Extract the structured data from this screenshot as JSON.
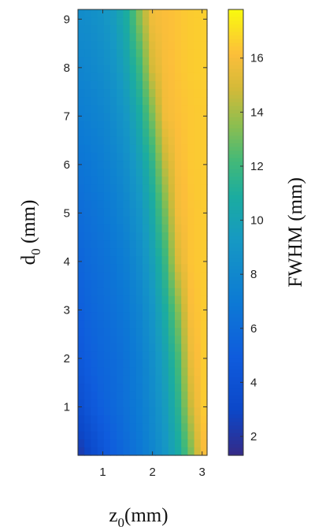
{
  "chart_data": {
    "type": "heatmap",
    "title": "",
    "xlabel_base": "z",
    "xlabel_sub": "0",
    "xlabel_unit": "(mm)",
    "ylabel_base": "d",
    "ylabel_sub": "0",
    "ylabel_unit": " (mm)",
    "colorbar_label": "FWHM (mm)",
    "xlim": [
      0.5,
      3.1
    ],
    "ylim": [
      0,
      9.2
    ],
    "xticks": [
      "1",
      "2",
      "3"
    ],
    "xtick_values": [
      1,
      2,
      3
    ],
    "yticks": [
      "1",
      "2",
      "3",
      "4",
      "5",
      "6",
      "7",
      "8",
      "9"
    ],
    "ytick_values": [
      1,
      2,
      3,
      4,
      5,
      6,
      7,
      8,
      9
    ],
    "colorbar_range": [
      1.3,
      17.8
    ],
    "colorbar_ticks": [
      "2",
      "4",
      "6",
      "8",
      "10",
      "12",
      "14",
      "16"
    ],
    "colorbar_tick_values": [
      2,
      4,
      6,
      8,
      10,
      12,
      14,
      16
    ],
    "colormap": "parula",
    "x_grid": [
      0.5,
      0.75,
      1.0,
      1.25,
      1.5,
      1.75,
      2.0,
      2.25,
      2.5,
      2.75,
      3.0
    ],
    "y_grid": [
      0,
      1,
      2,
      3,
      4,
      5,
      6,
      7,
      8,
      9
    ],
    "fwhm_values": [
      [
        2.0,
        3.0,
        4.2,
        5.2,
        6.0,
        6.8,
        7.8,
        9.0,
        10.5,
        12.8,
        16.0
      ],
      [
        3.5,
        4.5,
        5.3,
        5.8,
        6.5,
        7.2,
        8.2,
        9.5,
        11.2,
        14.5,
        16.5
      ],
      [
        4.5,
        5.2,
        5.7,
        6.0,
        6.6,
        7.4,
        8.5,
        10.0,
        12.0,
        15.5,
        16.5
      ],
      [
        5.0,
        5.6,
        6.0,
        6.4,
        7.0,
        7.8,
        9.0,
        10.8,
        13.2,
        16.0,
        16.5
      ],
      [
        5.5,
        6.0,
        6.4,
        6.8,
        7.4,
        8.4,
        9.8,
        11.8,
        15.0,
        16.3,
        16.5
      ],
      [
        6.0,
        6.4,
        6.8,
        7.3,
        8.0,
        9.0,
        10.6,
        13.0,
        15.8,
        16.3,
        16.5
      ],
      [
        6.6,
        6.9,
        7.3,
        7.8,
        8.6,
        9.8,
        11.6,
        14.5,
        16.0,
        16.4,
        16.5
      ],
      [
        7.2,
        7.5,
        7.8,
        8.4,
        9.3,
        10.8,
        13.2,
        15.8,
        16.2,
        16.4,
        16.5
      ],
      [
        7.8,
        8.0,
        8.4,
        9.0,
        10.2,
        12.0,
        15.0,
        16.0,
        16.3,
        16.5,
        16.6
      ],
      [
        8.3,
        8.5,
        8.9,
        9.6,
        11.0,
        13.5,
        15.8,
        16.1,
        16.3,
        16.5,
        16.6
      ]
    ]
  }
}
